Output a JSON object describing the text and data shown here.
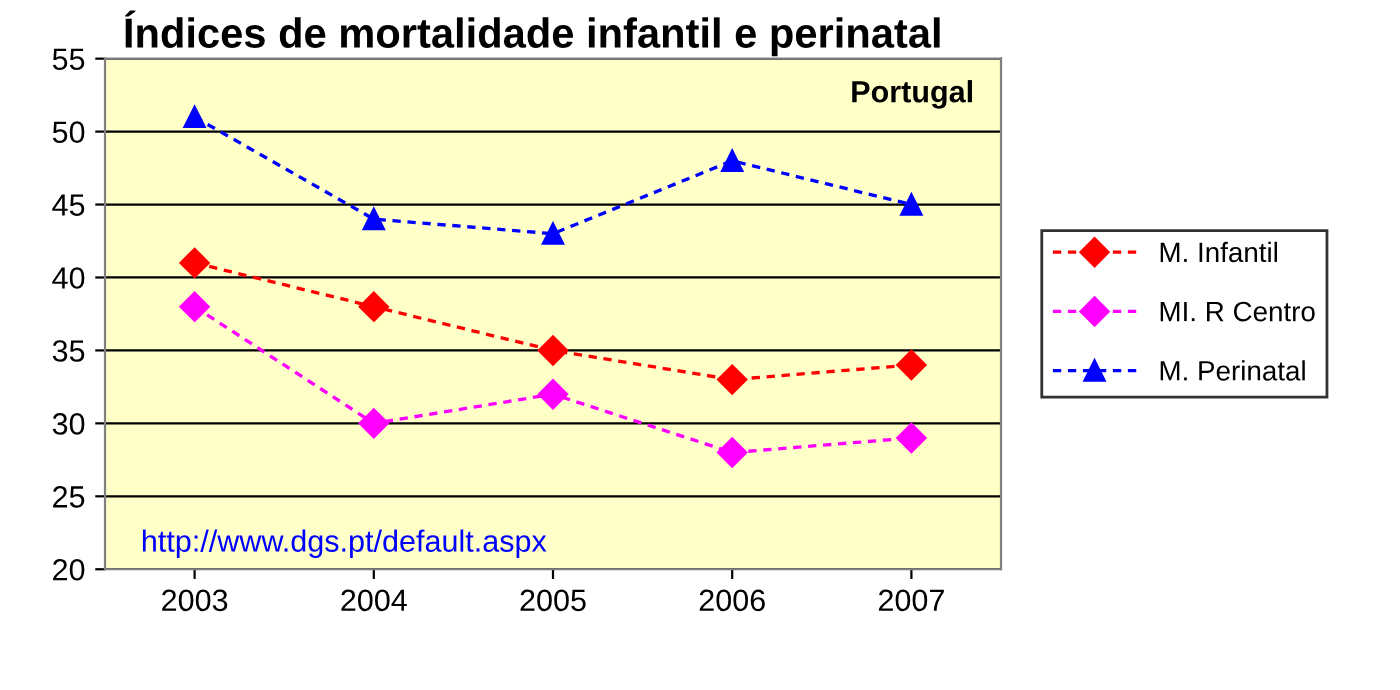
{
  "chart_data": {
    "type": "line",
    "title": "Índices de mortalidade infantil e perinatal",
    "categories": [
      "2003",
      "2004",
      "2005",
      "2006",
      "2007"
    ],
    "series": [
      {
        "name": "M. Infantil",
        "color": "#ff0000",
        "marker": "diamond",
        "values": [
          41,
          38,
          35,
          33,
          34
        ]
      },
      {
        "name": "MI. R Centro",
        "color": "#ff00ff",
        "marker": "diamond",
        "values": [
          38,
          30,
          32,
          28,
          29
        ]
      },
      {
        "name": "M. Perinatal",
        "color": "#0000ff",
        "marker": "triangle",
        "values": [
          51,
          44,
          43,
          48,
          45
        ]
      }
    ],
    "ylim": [
      20,
      55
    ],
    "yticks": [
      20,
      25,
      30,
      35,
      40,
      45,
      50,
      55
    ],
    "grid": "y",
    "legend": "right",
    "line_style": "dashed",
    "annotations": [
      "Portugal",
      "http://www.dgs.pt/default.aspx"
    ]
  }
}
